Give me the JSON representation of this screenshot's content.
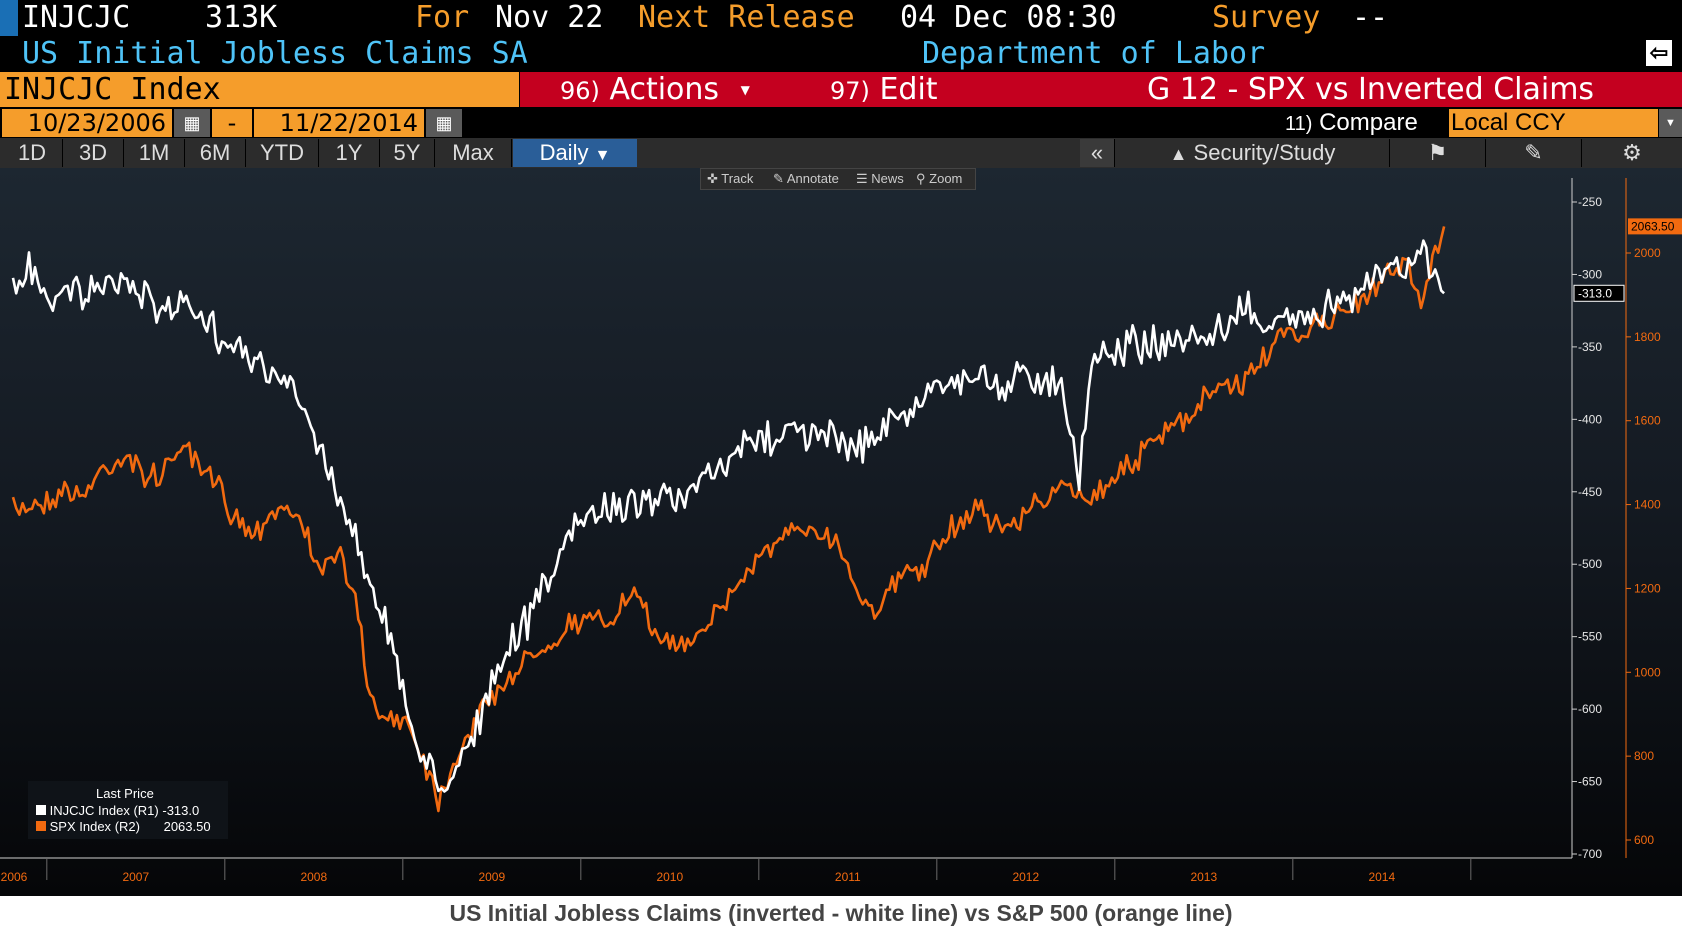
{
  "header": {
    "ticker": "INJCJC",
    "last_value": "313K",
    "for_label": "For",
    "for_date": "Nov 22",
    "next_release_label": "Next Release",
    "next_release": "04 Dec 08:30",
    "survey_label": "Survey",
    "survey_value": "--",
    "description": "US Initial Jobless Claims SA",
    "source": "Department of Labor"
  },
  "toolbar": {
    "index_name": "INJCJC Index",
    "actions_num": "96)",
    "actions_label": "Actions",
    "edit_num": "97)",
    "edit_label": "Edit",
    "chart_title": "G 12 - SPX vs Inverted Claims"
  },
  "dates": {
    "start": "10/23/2006",
    "separator": "-",
    "end": "11/22/2014",
    "compare_num": "11)",
    "compare_label": "Compare",
    "currency": "Local CCY"
  },
  "periods": [
    "1D",
    "3D",
    "1M",
    "6M",
    "YTD",
    "1Y",
    "5Y",
    "Max"
  ],
  "frequency": "Daily",
  "right_tools": {
    "collapse": "«",
    "security_study": "Security/Study"
  },
  "chart_tools": [
    "Track",
    "Annotate",
    "News",
    "Zoom"
  ],
  "legend": {
    "title": "Last Price",
    "items": [
      {
        "name": "INJCJC Index",
        "axis": "(R1)",
        "value": "-313.0",
        "color": "#ffffff"
      },
      {
        "name": "SPX Index",
        "axis": "(R2)",
        "value": "2063.50",
        "color": "#f26a10"
      }
    ]
  },
  "caption": "US Initial Jobless Claims (inverted - white line) vs S&P 500 (orange line)",
  "colors": {
    "orange": "#f59d2b",
    "red_bar": "#c4001f",
    "spx_line": "#f26a10",
    "claims_line": "#ffffff",
    "selected_period": "#2a5e98"
  },
  "chart_data": {
    "type": "line",
    "x_ticks": [
      "2006",
      "2007",
      "2008",
      "2009",
      "2010",
      "2011",
      "2012",
      "2013",
      "2014"
    ],
    "r1_ticks": [
      -250,
      -300,
      -350,
      -400,
      -450,
      -500,
      -550,
      -600,
      -650,
      -700
    ],
    "r2_ticks": [
      600,
      800,
      1000,
      1200,
      1400,
      1600,
      1800,
      2000
    ],
    "r1_ylim": [
      -700,
      -250
    ],
    "r2_ylim": [
      600,
      2000
    ],
    "last_labels": {
      "r1": "-313.0",
      "r2": "2063.50"
    },
    "series": [
      {
        "name": "INJCJC Index",
        "axis": "R1",
        "points": [
          [
            2006.81,
            -312
          ],
          [
            2006.9,
            -295
          ],
          [
            2007.0,
            -318
          ],
          [
            2007.1,
            -305
          ],
          [
            2007.2,
            -315
          ],
          [
            2007.3,
            -312
          ],
          [
            2007.45,
            -305
          ],
          [
            2007.6,
            -320
          ],
          [
            2007.75,
            -320
          ],
          [
            2007.85,
            -330
          ],
          [
            2007.95,
            -340
          ],
          [
            2008.05,
            -345
          ],
          [
            2008.15,
            -356
          ],
          [
            2008.25,
            -370
          ],
          [
            2008.35,
            -378
          ],
          [
            2008.45,
            -395
          ],
          [
            2008.55,
            -425
          ],
          [
            2008.65,
            -455
          ],
          [
            2008.75,
            -490
          ],
          [
            2008.85,
            -520
          ],
          [
            2008.95,
            -560
          ],
          [
            2009.05,
            -615
          ],
          [
            2009.2,
            -655
          ],
          [
            2009.3,
            -640
          ],
          [
            2009.45,
            -600
          ],
          [
            2009.6,
            -560
          ],
          [
            2009.75,
            -525
          ],
          [
            2009.9,
            -490
          ],
          [
            2010.0,
            -470
          ],
          [
            2010.1,
            -465
          ],
          [
            2010.2,
            -460
          ],
          [
            2010.3,
            -455
          ],
          [
            2010.45,
            -450
          ],
          [
            2010.55,
            -460
          ],
          [
            2010.65,
            -445
          ],
          [
            2010.8,
            -435
          ],
          [
            2010.95,
            -415
          ],
          [
            2011.1,
            -410
          ],
          [
            2011.2,
            -405
          ],
          [
            2011.3,
            -410
          ],
          [
            2011.45,
            -415
          ],
          [
            2011.55,
            -420
          ],
          [
            2011.7,
            -405
          ],
          [
            2011.85,
            -395
          ],
          [
            2012.0,
            -375
          ],
          [
            2012.1,
            -372
          ],
          [
            2012.25,
            -370
          ],
          [
            2012.35,
            -380
          ],
          [
            2012.45,
            -370
          ],
          [
            2012.55,
            -372
          ],
          [
            2012.7,
            -372
          ],
          [
            2012.8,
            -440
          ],
          [
            2012.87,
            -360
          ],
          [
            2013.0,
            -350
          ],
          [
            2013.2,
            -348
          ],
          [
            2013.35,
            -345
          ],
          [
            2013.5,
            -345
          ],
          [
            2013.65,
            -335
          ],
          [
            2013.75,
            -318
          ],
          [
            2013.85,
            -345
          ],
          [
            2013.95,
            -330
          ],
          [
            2014.1,
            -325
          ],
          [
            2014.25,
            -320
          ],
          [
            2014.4,
            -305
          ],
          [
            2014.55,
            -298
          ],
          [
            2014.65,
            -295
          ],
          [
            2014.75,
            -285
          ],
          [
            2014.85,
            -313
          ]
        ]
      },
      {
        "name": "SPX Index",
        "axis": "R2",
        "points": [
          [
            2006.81,
            1380
          ],
          [
            2006.9,
            1400
          ],
          [
            2007.0,
            1410
          ],
          [
            2007.1,
            1440
          ],
          [
            2007.2,
            1420
          ],
          [
            2007.3,
            1480
          ],
          [
            2007.45,
            1520
          ],
          [
            2007.55,
            1460
          ],
          [
            2007.65,
            1480
          ],
          [
            2007.75,
            1540
          ],
          [
            2007.85,
            1480
          ],
          [
            2007.95,
            1450
          ],
          [
            2008.05,
            1380
          ],
          [
            2008.15,
            1330
          ],
          [
            2008.25,
            1380
          ],
          [
            2008.35,
            1400
          ],
          [
            2008.45,
            1330
          ],
          [
            2008.55,
            1250
          ],
          [
            2008.65,
            1280
          ],
          [
            2008.75,
            1150
          ],
          [
            2008.8,
            950
          ],
          [
            2008.9,
            880
          ],
          [
            2009.0,
            900
          ],
          [
            2009.1,
            820
          ],
          [
            2009.2,
            700
          ],
          [
            2009.3,
            800
          ],
          [
            2009.45,
            920
          ],
          [
            2009.6,
            990
          ],
          [
            2009.75,
            1050
          ],
          [
            2009.9,
            1100
          ],
          [
            2010.0,
            1130
          ],
          [
            2010.15,
            1120
          ],
          [
            2010.3,
            1190
          ],
          [
            2010.4,
            1100
          ],
          [
            2010.55,
            1060
          ],
          [
            2010.7,
            1120
          ],
          [
            2010.85,
            1190
          ],
          [
            2011.0,
            1280
          ],
          [
            2011.15,
            1320
          ],
          [
            2011.3,
            1350
          ],
          [
            2011.45,
            1310
          ],
          [
            2011.55,
            1200
          ],
          [
            2011.65,
            1150
          ],
          [
            2011.8,
            1230
          ],
          [
            2011.95,
            1260
          ],
          [
            2012.1,
            1350
          ],
          [
            2012.25,
            1400
          ],
          [
            2012.35,
            1340
          ],
          [
            2012.45,
            1360
          ],
          [
            2012.6,
            1420
          ],
          [
            2012.75,
            1440
          ],
          [
            2012.85,
            1410
          ],
          [
            2013.0,
            1470
          ],
          [
            2013.15,
            1520
          ],
          [
            2013.3,
            1580
          ],
          [
            2013.45,
            1610
          ],
          [
            2013.55,
            1680
          ],
          [
            2013.7,
            1680
          ],
          [
            2013.8,
            1740
          ],
          [
            2013.95,
            1800
          ],
          [
            2014.1,
            1820
          ],
          [
            2014.25,
            1860
          ],
          [
            2014.4,
            1880
          ],
          [
            2014.55,
            1960
          ],
          [
            2014.65,
            1980
          ],
          [
            2014.72,
            1870
          ],
          [
            2014.8,
            2010
          ],
          [
            2014.85,
            2063.5
          ]
        ]
      }
    ]
  }
}
